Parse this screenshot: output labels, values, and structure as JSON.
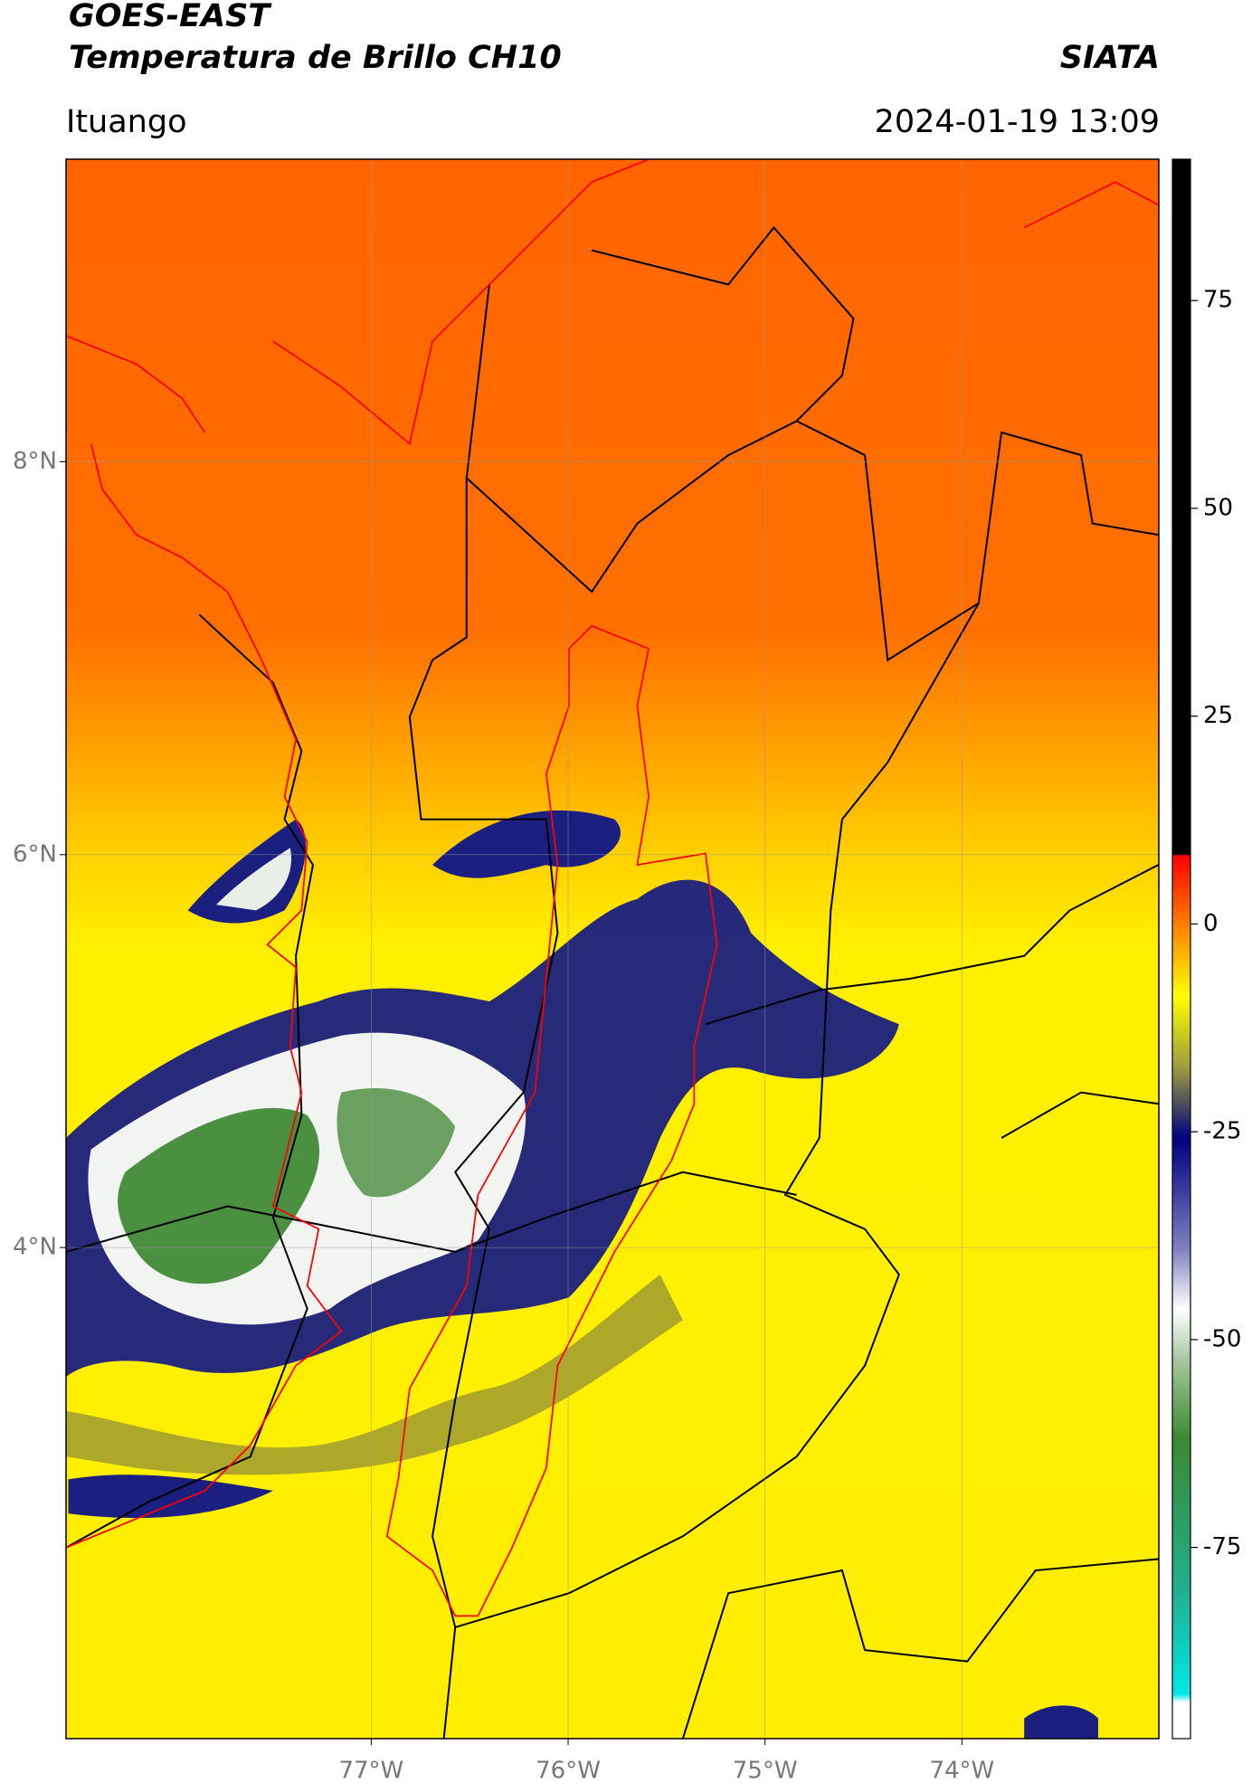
{
  "header": {
    "title": "GOES-EAST",
    "subtitle": "Temperatura de Brillo CH10",
    "agency": "SIATA",
    "location": "Ituango",
    "timestamp": "2024-01-19 13:09"
  },
  "map": {
    "xlim": [
      -78.55,
      -73.0
    ],
    "ylim": [
      1.5,
      9.54
    ],
    "xticks": [
      {
        "value": -77,
        "label": "77°W"
      },
      {
        "value": -76,
        "label": "76°W"
      },
      {
        "value": -75,
        "label": "75°W"
      },
      {
        "value": -74,
        "label": "74°W"
      }
    ],
    "yticks": [
      {
        "value": 8,
        "label": "8°N"
      },
      {
        "value": 6,
        "label": "6°N"
      },
      {
        "value": 4,
        "label": "4°N"
      }
    ],
    "grid": true
  },
  "colorbar": {
    "lim": [
      -98,
      92
    ],
    "ticks": [
      75,
      50,
      25,
      0,
      -25,
      -50,
      -75
    ]
  }
}
